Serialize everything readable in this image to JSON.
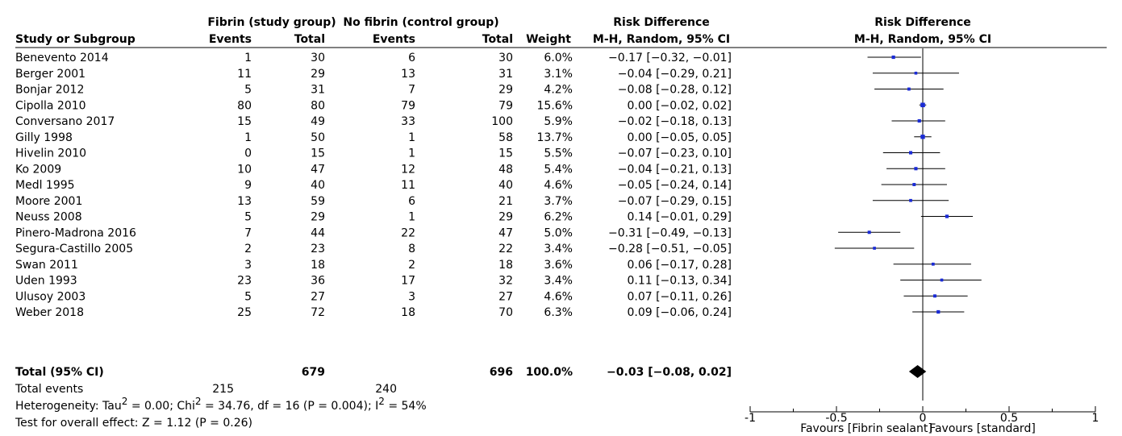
{
  "header": {
    "group1": "Fibrin (study group)",
    "group2": "No fibrin (control group)",
    "effect_col_line1": "Risk Difference",
    "effect_col_line2": "M-H, Random, 95% CI",
    "plot_line1": "Risk Difference",
    "plot_line2": "M-H, Random, 95% CI",
    "study": "Study or Subgroup",
    "events1": "Events",
    "total1": "Total",
    "events2": "Events",
    "total2": "Total",
    "weight": "Weight"
  },
  "studies": [
    {
      "name": "Benevento 2014",
      "e1": "1",
      "n1": "30",
      "e2": "6",
      "n2": "30",
      "weight": "6.0%",
      "ci_text": "−0.17 [−0.32, −0.01]"
    },
    {
      "name": "Berger 2001",
      "e1": "11",
      "n1": "29",
      "e2": "13",
      "n2": "31",
      "weight": "3.1%",
      "ci_text": "−0.04 [−0.29, 0.21]"
    },
    {
      "name": "Bonjar 2012",
      "e1": "5",
      "n1": "31",
      "e2": "7",
      "n2": "29",
      "weight": "4.2%",
      "ci_text": "−0.08 [−0.28, 0.12]"
    },
    {
      "name": "Cipolla 2010",
      "e1": "80",
      "n1": "80",
      "e2": "79",
      "n2": "79",
      "weight": "15.6%",
      "ci_text": "0.00 [−0.02, 0.02]"
    },
    {
      "name": "Conversano 2017",
      "e1": "15",
      "n1": "49",
      "e2": "33",
      "n2": "100",
      "weight": "5.9%",
      "ci_text": "−0.02 [−0.18, 0.13]"
    },
    {
      "name": "Gilly 1998",
      "e1": "1",
      "n1": "50",
      "e2": "1",
      "n2": "58",
      "weight": "13.7%",
      "ci_text": "0.00 [−0.05, 0.05]"
    },
    {
      "name": "Hivelin 2010",
      "e1": "0",
      "n1": "15",
      "e2": "1",
      "n2": "15",
      "weight": "5.5%",
      "ci_text": "−0.07 [−0.23, 0.10]"
    },
    {
      "name": "Ko 2009",
      "e1": "10",
      "n1": "47",
      "e2": "12",
      "n2": "48",
      "weight": "5.4%",
      "ci_text": "−0.04 [−0.21, 0.13]"
    },
    {
      "name": "Medl 1995",
      "e1": "9",
      "n1": "40",
      "e2": "11",
      "n2": "40",
      "weight": "4.6%",
      "ci_text": "−0.05 [−0.24, 0.14]"
    },
    {
      "name": "Moore 2001",
      "e1": "13",
      "n1": "59",
      "e2": "6",
      "n2": "21",
      "weight": "3.7%",
      "ci_text": "−0.07 [−0.29, 0.15]"
    },
    {
      "name": "Neuss 2008",
      "e1": "5",
      "n1": "29",
      "e2": "1",
      "n2": "29",
      "weight": "6.2%",
      "ci_text": "0.14 [−0.01, 0.29]"
    },
    {
      "name": "Pinero-Madrona 2016",
      "e1": "7",
      "n1": "44",
      "e2": "22",
      "n2": "47",
      "weight": "5.0%",
      "ci_text": "−0.31 [−0.49, −0.13]"
    },
    {
      "name": "Segura-Castillo 2005",
      "e1": "2",
      "n1": "23",
      "e2": "8",
      "n2": "22",
      "weight": "3.4%",
      "ci_text": "−0.28 [−0.51, −0.05]"
    },
    {
      "name": "Swan 2011",
      "e1": "3",
      "n1": "18",
      "e2": "2",
      "n2": "18",
      "weight": "3.6%",
      "ci_text": "0.06 [−0.17, 0.28]"
    },
    {
      "name": "Uden 1993",
      "e1": "23",
      "n1": "36",
      "e2": "17",
      "n2": "32",
      "weight": "3.4%",
      "ci_text": "0.11 [−0.13, 0.34]"
    },
    {
      "name": "Ulusoy 2003",
      "e1": "5",
      "n1": "27",
      "e2": "3",
      "n2": "27",
      "weight": "4.6%",
      "ci_text": "0.07 [−0.11, 0.26]"
    },
    {
      "name": "Weber 2018",
      "e1": "25",
      "n1": "72",
      "e2": "18",
      "n2": "70",
      "weight": "6.3%",
      "ci_text": "0.09 [−0.06, 0.24]"
    }
  ],
  "total": {
    "label": "Total (95% CI)",
    "n1": "679",
    "n2": "696",
    "weight": "100.0%",
    "ci_text": "−0.03 [−0.08, 0.02]"
  },
  "total_events": {
    "label": "Total events",
    "e1": "215",
    "e2": "240"
  },
  "heterogeneity": {
    "prefix": "Heterogeneity: Tau",
    "a": " = 0.00; Chi",
    "b": " = 34.76, df = 16 (P = 0.004); I",
    "c": " = 54%",
    "sup": "2"
  },
  "overall_effect": "Test for overall effect: Z = 1.12 (P = 0.26)",
  "footer": {
    "favours_left": "Favours [Fibrin sealant]",
    "favours_right": "Favours [standard]"
  },
  "chart_data": {
    "type": "forest",
    "measure": "Risk Difference",
    "method": "M-H, Random, 95% CI",
    "xlim": [
      -1,
      1
    ],
    "ticks": [
      -1,
      -0.5,
      0,
      0.5,
      1
    ],
    "tick_labels": [
      "-1",
      "-0.5",
      "0",
      "0.5",
      "1"
    ],
    "series": [
      {
        "study": "Benevento 2014",
        "rd": -0.17,
        "lo": -0.32,
        "hi": -0.01,
        "weight": 6.0
      },
      {
        "study": "Berger 2001",
        "rd": -0.04,
        "lo": -0.29,
        "hi": 0.21,
        "weight": 3.1
      },
      {
        "study": "Bonjar 2012",
        "rd": -0.08,
        "lo": -0.28,
        "hi": 0.12,
        "weight": 4.2
      },
      {
        "study": "Cipolla 2010",
        "rd": 0.0,
        "lo": -0.02,
        "hi": 0.02,
        "weight": 15.6
      },
      {
        "study": "Conversano 2017",
        "rd": -0.02,
        "lo": -0.18,
        "hi": 0.13,
        "weight": 5.9
      },
      {
        "study": "Gilly 1998",
        "rd": 0.0,
        "lo": -0.05,
        "hi": 0.05,
        "weight": 13.7
      },
      {
        "study": "Hivelin 2010",
        "rd": -0.07,
        "lo": -0.23,
        "hi": 0.1,
        "weight": 5.5
      },
      {
        "study": "Ko 2009",
        "rd": -0.04,
        "lo": -0.21,
        "hi": 0.13,
        "weight": 5.4
      },
      {
        "study": "Medl 1995",
        "rd": -0.05,
        "lo": -0.24,
        "hi": 0.14,
        "weight": 4.6
      },
      {
        "study": "Moore 2001",
        "rd": -0.07,
        "lo": -0.29,
        "hi": 0.15,
        "weight": 3.7
      },
      {
        "study": "Neuss 2008",
        "rd": 0.14,
        "lo": -0.01,
        "hi": 0.29,
        "weight": 6.2
      },
      {
        "study": "Pinero-Madrona 2016",
        "rd": -0.31,
        "lo": -0.49,
        "hi": -0.13,
        "weight": 5.0
      },
      {
        "study": "Segura-Castillo 2005",
        "rd": -0.28,
        "lo": -0.51,
        "hi": -0.05,
        "weight": 3.4
      },
      {
        "study": "Swan 2011",
        "rd": 0.06,
        "lo": -0.17,
        "hi": 0.28,
        "weight": 3.6
      },
      {
        "study": "Uden 1993",
        "rd": 0.11,
        "lo": -0.13,
        "hi": 0.34,
        "weight": 3.4
      },
      {
        "study": "Ulusoy 2003",
        "rd": 0.07,
        "lo": -0.11,
        "hi": 0.26,
        "weight": 4.6
      },
      {
        "study": "Weber 2018",
        "rd": 0.09,
        "lo": -0.06,
        "hi": 0.24,
        "weight": 6.3
      }
    ],
    "pooled": {
      "rd": -0.03,
      "lo": -0.08,
      "hi": 0.02
    },
    "colors": {
      "point": "#1a2bd6",
      "line": "#000000",
      "diamond": "#000000"
    }
  }
}
